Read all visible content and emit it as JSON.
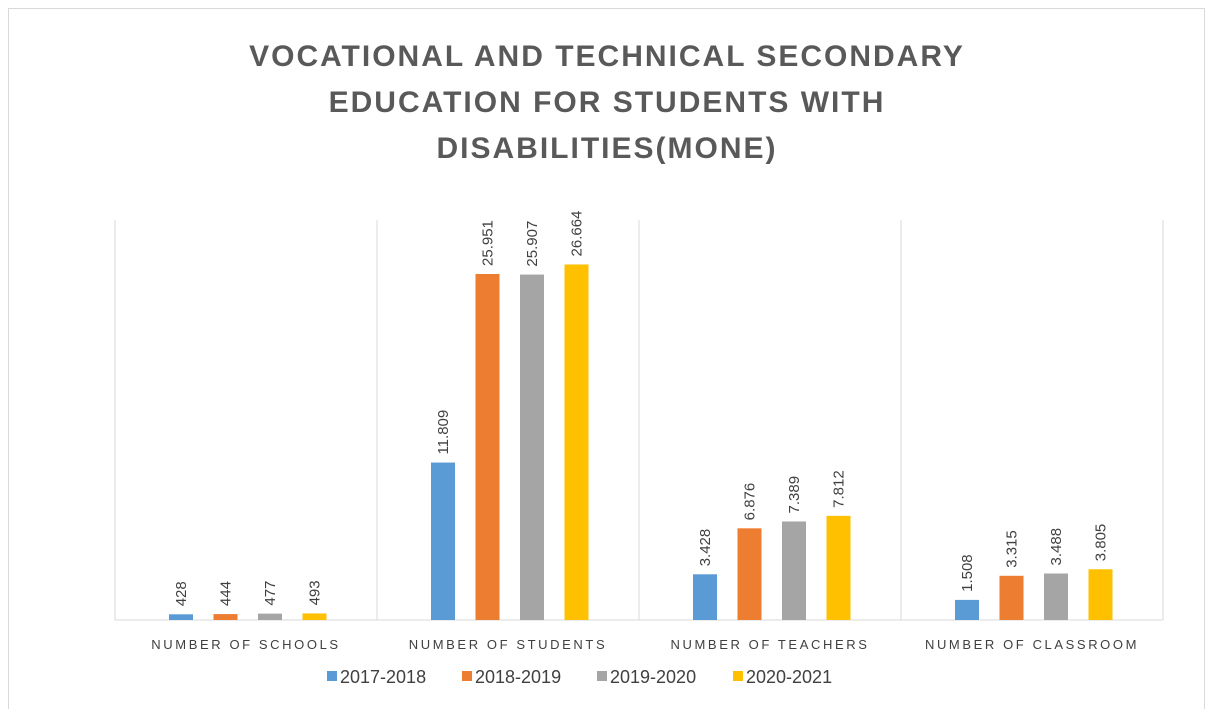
{
  "chart_data": {
    "type": "bar",
    "title": "VOCATIONAL AND TECHNICAL SECONDARY EDUCATION FOR STUDENTS WITH DISABILITIES(MONE)",
    "categories": [
      "NUMBER OF SCHOOLS",
      "NUMBER OF STUDENTS",
      "NUMBER OF TEACHERS",
      "NUMBER OF CLASSROOM"
    ],
    "series": [
      {
        "name": "2017-2018",
        "color": "#5b9bd5",
        "values": [
          428,
          11809,
          3428,
          1508
        ],
        "value_labels": [
          "428",
          "11.809",
          "3.428",
          "1.508"
        ]
      },
      {
        "name": "2018-2019",
        "color": "#ed7d31",
        "values": [
          444,
          25951,
          6876,
          3315
        ],
        "value_labels": [
          "444",
          "25.951",
          "6.876",
          "3.315"
        ]
      },
      {
        "name": "2019-2020",
        "color": "#a5a5a5",
        "values": [
          477,
          25907,
          7389,
          3488
        ],
        "value_labels": [
          "477",
          "25.907",
          "7.389",
          "3.488"
        ]
      },
      {
        "name": "2020-2021",
        "color": "#ffc000",
        "values": [
          493,
          26664,
          7812,
          3805
        ],
        "value_labels": [
          "493",
          "26.664",
          "7.812",
          "3.805"
        ]
      }
    ],
    "ylim": [
      0,
      30000
    ],
    "legend": "bottom"
  }
}
